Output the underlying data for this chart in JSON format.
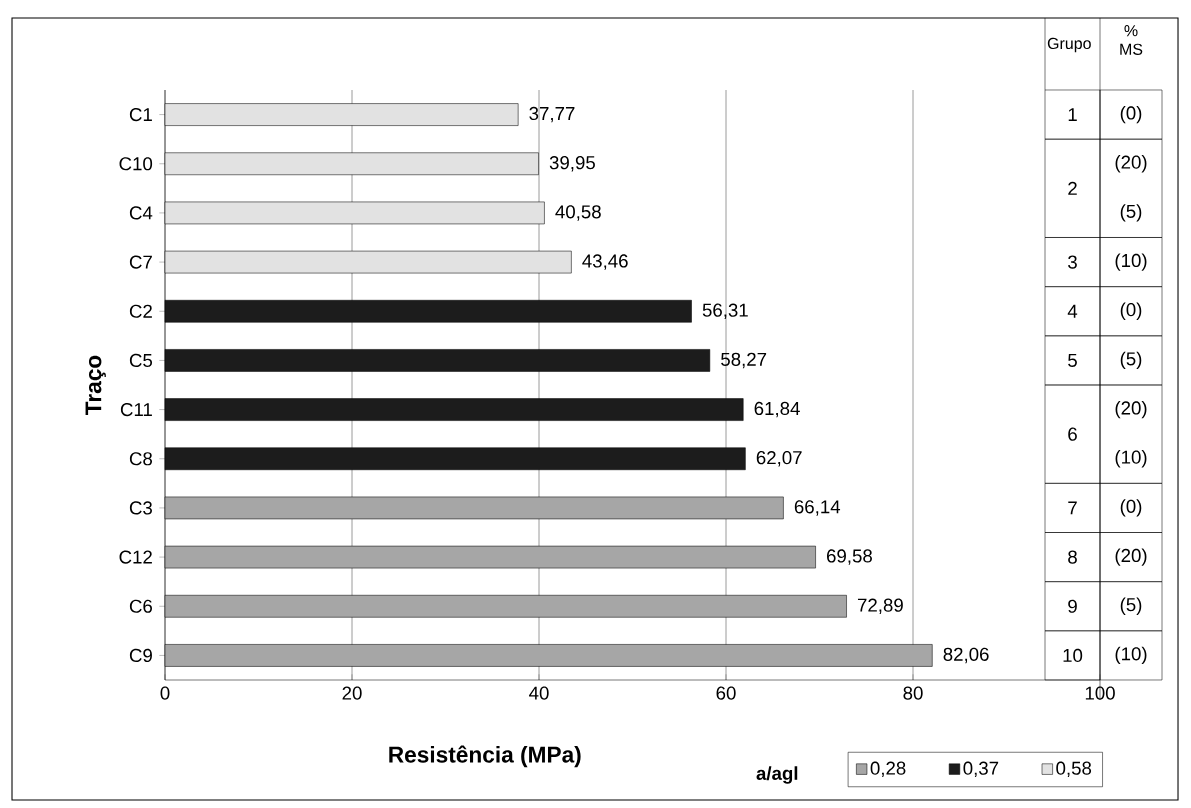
{
  "chart_data": {
    "type": "bar",
    "orientation": "horizontal",
    "xlabel": "Resistência (MPa)",
    "ylabel": "Traço",
    "legend_title": "a/agl",
    "legend": "bottom right",
    "grid": "x",
    "categories": [
      "C1",
      "C10",
      "C4",
      "C7",
      "C2",
      "C5",
      "C11",
      "C8",
      "C3",
      "C12",
      "C6",
      "C9"
    ],
    "xlim": [
      0,
      100
    ],
    "xticks": [
      0,
      20,
      40,
      60,
      80,
      100
    ],
    "series": [
      {
        "name": "0,28",
        "color": "#a6a6a6",
        "values": [
          null,
          null,
          null,
          null,
          null,
          null,
          null,
          null,
          66.14,
          69.58,
          72.89,
          82.06
        ],
        "value_labels": [
          null,
          null,
          null,
          null,
          null,
          null,
          null,
          null,
          "66,14",
          "69,58",
          "72,89",
          "82,06"
        ]
      },
      {
        "name": "0,37",
        "color": "#1c1c1c",
        "values": [
          null,
          null,
          null,
          null,
          56.31,
          58.27,
          61.84,
          62.07,
          null,
          null,
          null,
          null
        ],
        "value_labels": [
          null,
          null,
          null,
          null,
          "56,31",
          "58,27",
          "61,84",
          "62,07",
          null,
          null,
          null,
          null
        ]
      },
      {
        "name": "0,58",
        "color": "#e2e2e2",
        "values": [
          37.77,
          39.95,
          40.58,
          43.46,
          null,
          null,
          null,
          null,
          null,
          null,
          null,
          null
        ],
        "value_labels": [
          "37,77",
          "39,95",
          "40,58",
          "43,46",
          null,
          null,
          null,
          null,
          null,
          null,
          null,
          null
        ]
      }
    ],
    "annotations": [
      "Grupo",
      "% MS",
      "1",
      "2",
      "3",
      "4",
      "5",
      "6",
      "7",
      "8",
      "9",
      "10",
      "(0)",
      "(20)",
      "(5)",
      "(10)",
      "(0)",
      "(5)",
      "(20)",
      "(10)",
      "(0)",
      "(20)",
      "(5)",
      "(10)"
    ]
  }
}
